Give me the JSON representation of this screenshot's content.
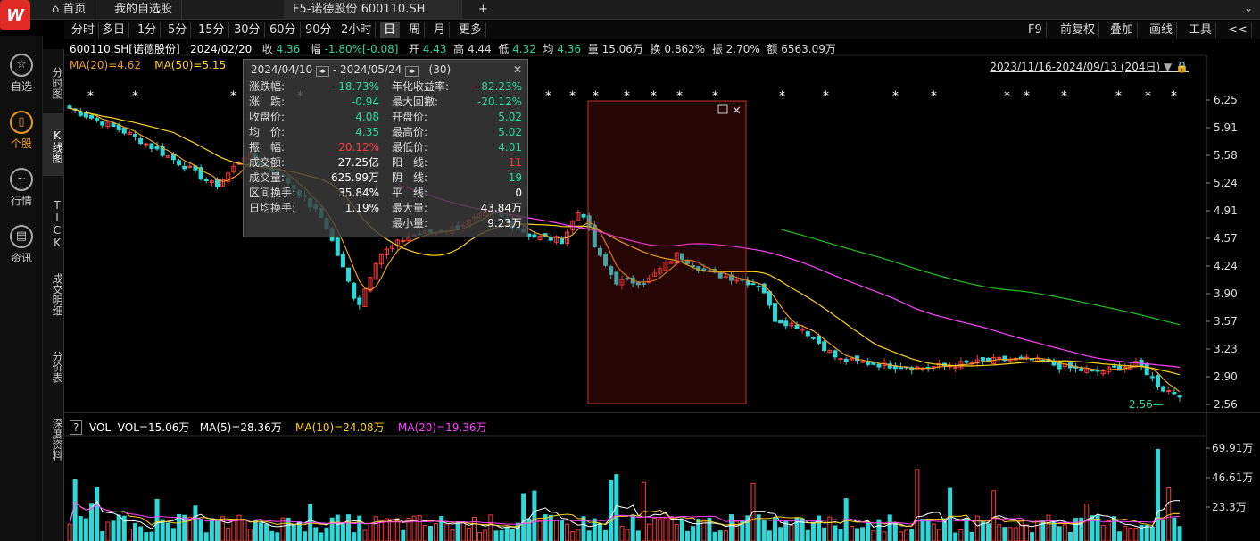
{
  "tabs": {
    "home": "首页",
    "watchlist": "我的自选股",
    "active": "F5-诺德股份 600110.SH",
    "add": "+"
  },
  "left_nav": [
    {
      "label": "自选",
      "icon": "star-icon"
    },
    {
      "label": "个股",
      "icon": "stock-icon"
    },
    {
      "label": "行情",
      "icon": "market-icon"
    },
    {
      "label": "资讯",
      "icon": "news-icon"
    }
  ],
  "vertical_tabs": [
    "分时图",
    "K线图",
    "TICK",
    "成交明细",
    "分价表",
    "深度资料"
  ],
  "periods": [
    "分时",
    "多日",
    "1分",
    "5分",
    "15分",
    "30分",
    "60分",
    "90分",
    "2小时",
    "日",
    "周",
    "月",
    "更多"
  ],
  "right_tools": [
    "F9",
    "前复权",
    "叠加",
    "画线",
    "工具",
    "<<"
  ],
  "info": {
    "code": "600110.SH[诺德股份]",
    "date": "2024/02/20",
    "close_lbl": "收",
    "close": "4.36",
    "amp_lbl": "幅",
    "chg": "-1.80%[-0.08]",
    "open_lbl": "开",
    "open": "4.43",
    "high_lbl": "高",
    "high": "4.44",
    "low_lbl": "低",
    "low": "4.32",
    "avg_lbl": "均",
    "avg": "4.36",
    "vol_lbl": "量",
    "vol": "15.06万",
    "turn_lbl": "换",
    "turn": "0.862%",
    "zf_lbl": "振",
    "zf": "2.70%",
    "amt_lbl": "额",
    "amt": "6563.09万"
  },
  "ma": {
    "ma20": "MA(20)=4.62",
    "ma50": "MA(50)=5.15"
  },
  "range": "2023/11/16-2024/09/13 (204日)",
  "popup": {
    "start": "2024/04/10",
    "sep": "-",
    "end": "2024/05/24",
    "count": "(30)",
    "left": [
      [
        "涨跌幅:",
        "-18.73%"
      ],
      [
        "涨　跌:",
        "-0.94"
      ],
      [
        "收盘价:",
        "4.08"
      ],
      [
        "均　价:",
        "4.35"
      ],
      [
        "振　幅:",
        "20.12%"
      ],
      [
        "成交额:",
        "27.25亿"
      ],
      [
        "成交量:",
        "625.99万"
      ],
      [
        "区间换手:",
        "35.84%"
      ],
      [
        "日均换手:",
        "1.19%"
      ]
    ],
    "right": [
      [
        "年化收益率:",
        "-82.23%"
      ],
      [
        "最大回撤:",
        "-20.12%"
      ],
      [
        "开盘价:",
        "5.02"
      ],
      [
        "最高价:",
        "5.02"
      ],
      [
        "最低价:",
        "4.01"
      ],
      [
        "阳　线:",
        "11"
      ],
      [
        "阴　线:",
        "19"
      ],
      [
        "平　线:",
        "0"
      ],
      [
        "最大量:",
        "43.84万"
      ],
      [
        "最小量:",
        "9.23万"
      ]
    ]
  },
  "price_axis": [
    "6.25",
    "5.91",
    "5.58",
    "5.24",
    "4.91",
    "4.57",
    "4.24",
    "3.90",
    "3.57",
    "3.23",
    "2.90",
    "2.56"
  ],
  "min_label": "2.56",
  "vol": {
    "help": "?",
    "name": "VOL",
    "vol": "VOL=15.06万",
    "ma5": "MA(5)=28.36万",
    "ma10": "MA(10)=24.08万",
    "ma20": "MA(20)=19.36万"
  },
  "vol_axis": [
    "69.91万",
    "46.61万",
    "23.3万"
  ],
  "colors": {
    "up": "#ff3a3a",
    "down": "#2fd8d8",
    "ma5": "#ffffff",
    "ma10": "#ffd21f",
    "ma20": "#ff42ff",
    "ma60": "#21c021"
  }
}
